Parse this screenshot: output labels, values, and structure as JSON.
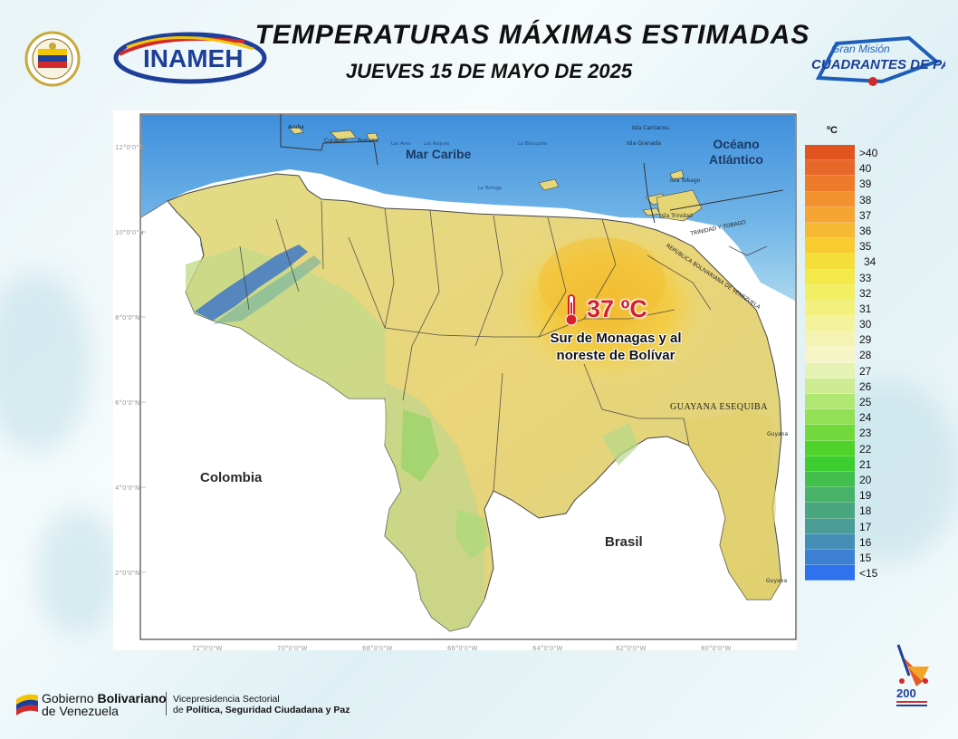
{
  "header": {
    "title": "TEMPERATURAS MÁXIMAS ESTIMADAS",
    "date": "JUEVES 15 DE MAYO DE 2025",
    "logo_left": "INAMEH",
    "logo_right_line1": "Gran Misión",
    "logo_right_line2": "CUADRANTES DE PAZ"
  },
  "map": {
    "latitude_labels": [
      "12°0'0\"N",
      "10°0'0\"N",
      "8°0'0\"N",
      "6°0'0\"N",
      "4°0'0\"N",
      "2°0'0\"N"
    ],
    "longitude_labels": [
      "72°0'0\"W",
      "70°0'0\"W",
      "68°0'0\"W",
      "66°0'0\"W",
      "64°0'0\"W",
      "62°0'0\"W",
      "60°0'0\"W"
    ],
    "countries": {
      "colombia": "Colombia",
      "brasil": "Brasil"
    },
    "seas": {
      "caribe": "Mar Caribe",
      "atlantico": "Océano Atlántico"
    },
    "guayana": "GUAYANA ESEQUIBA",
    "trinidad_label": "TRINIDAD Y TOBAGO",
    "border_label": "REPÚBLICA BOLIVARIANA DE VENEZUELA",
    "places": {
      "aruba": "Aruba",
      "curazao": "Curazao",
      "bonaire": "Bonaire",
      "los_roques": "Los Roques",
      "las_aves": "Las Aves",
      "la_blanquilla": "La Blanquilla",
      "la_tortuga": "La Tortuga",
      "carriacou": "Isla Carriacou",
      "granada": "Isla Granada",
      "tobago": "Isla Tobago",
      "trinidad": "Isla Trinidad",
      "guyana_1": "Guyana",
      "guyana_2": "Guyana"
    }
  },
  "highlight": {
    "value": "37 ºC",
    "description_line1": "Sur de Monagas  y al",
    "description_line2": "noreste de Bolívar"
  },
  "legend": {
    "unit": "ºC",
    "items": [
      {
        "label": ">40",
        "color": "#e2541f"
      },
      {
        "label": "40",
        "color": "#e8682a"
      },
      {
        "label": "39",
        "color": "#ee7b2c"
      },
      {
        "label": "38",
        "color": "#f2922e"
      },
      {
        "label": "37",
        "color": "#f5a532"
      },
      {
        "label": "36",
        "color": "#f7b833"
      },
      {
        "label": "35",
        "color": "#f8cb2e"
      },
      {
        "label": "34",
        "color": "#f6de3a"
      },
      {
        "label": "33",
        "color": "#f3e94a"
      },
      {
        "label": "32",
        "color": "#f2ef62"
      },
      {
        "label": "31",
        "color": "#f3f07e"
      },
      {
        "label": "30",
        "color": "#f4f29a"
      },
      {
        "label": "29",
        "color": "#f5f3b3"
      },
      {
        "label": "28",
        "color": "#f5f5c6"
      },
      {
        "label": "27",
        "color": "#e6f2b3"
      },
      {
        "label": "26",
        "color": "#cdec92"
      },
      {
        "label": "25",
        "color": "#b0e672"
      },
      {
        "label": "24",
        "color": "#92e055"
      },
      {
        "label": "23",
        "color": "#71d93b"
      },
      {
        "label": "22",
        "color": "#4fd22a"
      },
      {
        "label": "21",
        "color": "#3ccd2f"
      },
      {
        "label": "20",
        "color": "#41be4c"
      },
      {
        "label": "19",
        "color": "#48b269"
      },
      {
        "label": "18",
        "color": "#4aa67f"
      },
      {
        "label": "17",
        "color": "#4a9c97"
      },
      {
        "label": "16",
        "color": "#458fb7"
      },
      {
        "label": "15",
        "color": "#3d80d3"
      },
      {
        "label": "<15",
        "color": "#2f72ee"
      }
    ]
  },
  "footer": {
    "gob_line1_a": "Gobierno ",
    "gob_line1_b": "Bolivariano",
    "gob_line2": "de Venezuela",
    "vice_line1": "Vicepresidencia Sectorial",
    "vice_line2_a": "de ",
    "vice_line2_b": "Política, Seguridad Ciudadana y Paz"
  },
  "colors": {
    "sea": "#4a9ae0",
    "land_warm": "#f1c848",
    "land_mild": "#e6d98a",
    "land_cool": "#b7d98a",
    "andes": "#3f78c8",
    "hot_text": "#d8202a"
  }
}
